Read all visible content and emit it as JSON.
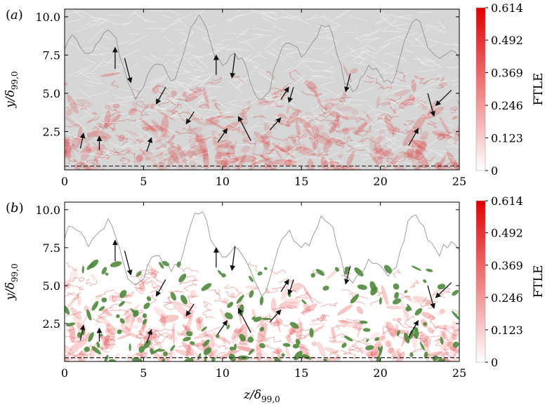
{
  "chart_data": [
    {
      "type": "heatmap",
      "panel_label": "(a)",
      "xlabel": "",
      "ylabel": "y/δ99,0",
      "xlim": [
        0,
        25
      ],
      "ylim": [
        0,
        10.5
      ],
      "x_ticks": [
        0,
        5,
        10,
        15,
        20,
        25
      ],
      "y_ticks": [
        2.5,
        5.0,
        7.5,
        10.0
      ],
      "x_tick_labels": [
        "0",
        "5",
        "10",
        "15",
        "20",
        "25"
      ],
      "y_tick_labels": [
        "2.5",
        "5.0",
        "7.5",
        "10.0"
      ],
      "overlay": "streamlines",
      "colorbar": {
        "label": "FTLE",
        "range": [
          0,
          0.614
        ],
        "ticks": [
          0,
          0.123,
          0.246,
          0.369,
          0.492,
          0.614
        ],
        "tick_labels": [
          "0",
          "0.123",
          "0.246",
          "0.369",
          "0.492",
          "0.614"
        ],
        "colors": [
          "#ffffff",
          "#e00000"
        ]
      },
      "arrows": [
        {
          "x": 3.2,
          "y": 6.6,
          "dx": 0.0,
          "dy": 1.4
        },
        {
          "x": 3.8,
          "y": 7.3,
          "dx": 0.4,
          "dy": -1.6
        },
        {
          "x": 6.4,
          "y": 5.4,
          "dx": -0.6,
          "dy": -1.1
        },
        {
          "x": 9.6,
          "y": 6.2,
          "dx": 0.0,
          "dy": 1.3
        },
        {
          "x": 10.8,
          "y": 7.6,
          "dx": -0.2,
          "dy": -1.6
        },
        {
          "x": 13.7,
          "y": 4.6,
          "dx": 0.5,
          "dy": 0.8
        },
        {
          "x": 14.5,
          "y": 5.4,
          "dx": -0.3,
          "dy": -1.0
        },
        {
          "x": 18.1,
          "y": 6.3,
          "dx": -0.3,
          "dy": -1.2
        },
        {
          "x": 23.0,
          "y": 5.0,
          "dx": 0.4,
          "dy": -1.5
        },
        {
          "x": 24.5,
          "y": 5.2,
          "dx": -1.0,
          "dy": -1.0
        },
        {
          "x": 11.8,
          "y": 1.9,
          "dx": -0.8,
          "dy": 1.6
        },
        {
          "x": 13.0,
          "y": 2.6,
          "dx": 0.7,
          "dy": 0.8
        },
        {
          "x": 9.7,
          "y": 1.8,
          "dx": 0.6,
          "dy": 0.9
        },
        {
          "x": 1.0,
          "y": 1.4,
          "dx": 0.2,
          "dy": 1.0
        },
        {
          "x": 2.2,
          "y": 1.3,
          "dx": 0.0,
          "dy": 0.9
        },
        {
          "x": 5.2,
          "y": 1.2,
          "dx": 0.3,
          "dy": 0.9
        },
        {
          "x": 21.8,
          "y": 1.6,
          "dx": 0.6,
          "dy": 1.1
        },
        {
          "x": 8.2,
          "y": 3.8,
          "dx": -0.5,
          "dy": -0.8
        }
      ]
    },
    {
      "type": "heatmap",
      "panel_label": "(b)",
      "xlabel": "z/δ99,0",
      "ylabel": "y/δ99,0",
      "xlim": [
        0,
        25
      ],
      "ylim": [
        0,
        10.5
      ],
      "x_ticks": [
        0,
        5,
        10,
        15,
        20,
        25
      ],
      "y_ticks": [
        2.5,
        5.0,
        7.5,
        10.0
      ],
      "x_tick_labels": [
        "0",
        "5",
        "10",
        "15",
        "20",
        "25"
      ],
      "y_tick_labels": [
        "2.5",
        "5.0",
        "7.5",
        "10.0"
      ],
      "overlay": "green vortex patches",
      "patch_color": "#4e8a3c",
      "colorbar": {
        "label": "FTLE",
        "range": [
          0,
          0.614
        ],
        "ticks": [
          0,
          0.123,
          0.246,
          0.369,
          0.492,
          0.614
        ],
        "tick_labels": [
          "0",
          "0.123",
          "0.246",
          "0.369",
          "0.492",
          "0.614"
        ],
        "colors": [
          "#ffffff",
          "#e00000"
        ]
      },
      "arrows": [
        {
          "x": 3.2,
          "y": 6.6,
          "dx": 0.0,
          "dy": 1.4
        },
        {
          "x": 3.8,
          "y": 7.3,
          "dx": 0.4,
          "dy": -1.6
        },
        {
          "x": 6.4,
          "y": 5.4,
          "dx": -0.6,
          "dy": -1.1
        },
        {
          "x": 9.6,
          "y": 6.2,
          "dx": 0.0,
          "dy": 1.3
        },
        {
          "x": 10.8,
          "y": 7.6,
          "dx": -0.2,
          "dy": -1.6
        },
        {
          "x": 13.7,
          "y": 4.6,
          "dx": 0.5,
          "dy": 0.8
        },
        {
          "x": 14.5,
          "y": 5.4,
          "dx": -0.3,
          "dy": -1.0
        },
        {
          "x": 18.1,
          "y": 6.3,
          "dx": -0.3,
          "dy": -1.2
        },
        {
          "x": 23.0,
          "y": 5.0,
          "dx": 0.4,
          "dy": -1.5
        },
        {
          "x": 24.5,
          "y": 5.2,
          "dx": -1.0,
          "dy": -1.0
        },
        {
          "x": 11.8,
          "y": 1.9,
          "dx": -0.8,
          "dy": 1.6
        },
        {
          "x": 13.0,
          "y": 2.6,
          "dx": 0.7,
          "dy": 0.8
        },
        {
          "x": 9.7,
          "y": 1.8,
          "dx": 0.6,
          "dy": 0.9
        },
        {
          "x": 1.0,
          "y": 1.4,
          "dx": 0.2,
          "dy": 1.0
        },
        {
          "x": 2.2,
          "y": 1.3,
          "dx": 0.0,
          "dy": 0.9
        },
        {
          "x": 5.2,
          "y": 1.2,
          "dx": 0.3,
          "dy": 0.9
        },
        {
          "x": 21.8,
          "y": 1.6,
          "dx": 0.6,
          "dy": 1.1
        },
        {
          "x": 8.2,
          "y": 3.8,
          "dx": -0.5,
          "dy": -0.8
        }
      ]
    }
  ]
}
